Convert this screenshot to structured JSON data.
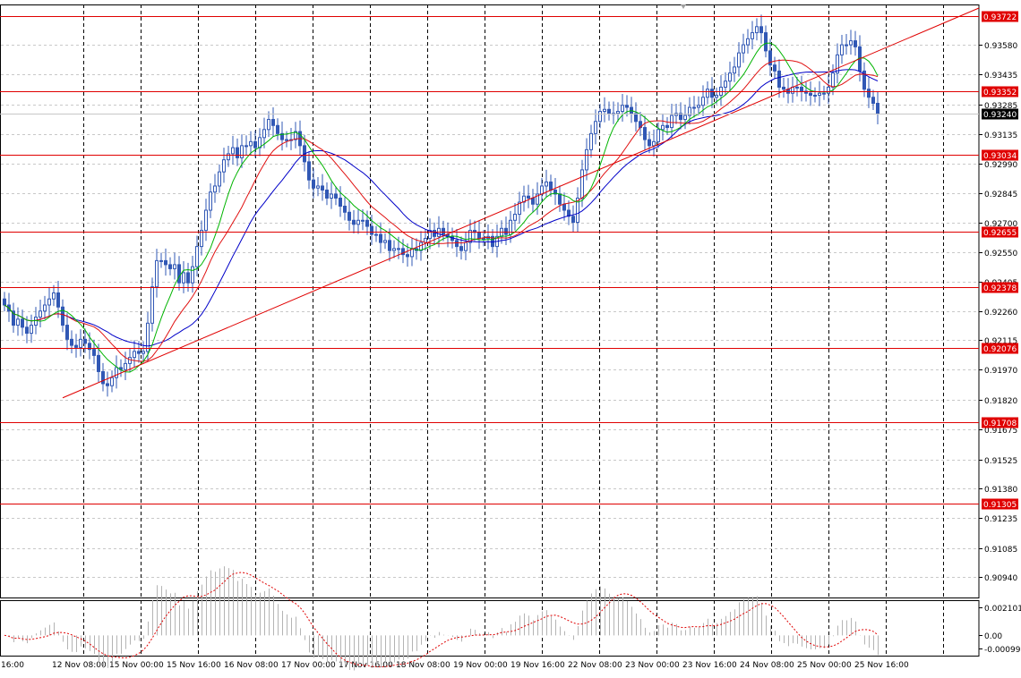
{
  "chart_data": [
    {
      "type": "candlestick",
      "panel": "main",
      "y_range": [
        0.9084,
        0.9378
      ],
      "y_ticks": [
        0.9358,
        0.93435,
        0.93285,
        0.93135,
        0.9299,
        0.92845,
        0.927,
        0.9255,
        0.92405,
        0.9226,
        0.92115,
        0.9197,
        0.9182,
        0.91675,
        0.91525,
        0.9138,
        0.91235,
        0.91085,
        0.9094
      ],
      "x_tick_labels": [
        "16:00",
        "12 Nov 08:00",
        "15 Nov 00:00",
        "15 Nov 16:00",
        "16 Nov 08:00",
        "17 Nov 00:00",
        "17 Nov 16:00",
        "18 Nov 08:00",
        "19 Nov 00:00",
        "19 Nov 16:00",
        "22 Nov 08:00",
        "23 Nov 00:00",
        "23 Nov 16:00",
        "24 Nov 08:00",
        "25 Nov 00:00",
        "25 Nov 16:00"
      ],
      "horizontal_levels": [
        {
          "value": 0.93722,
          "label": "0.93722"
        },
        {
          "value": 0.93352,
          "label": "0.93352"
        },
        {
          "value": 0.93034,
          "label": "0.93034"
        },
        {
          "value": 0.92655,
          "label": "0.92655"
        },
        {
          "value": 0.92378,
          "label": "0.92378"
        },
        {
          "value": 0.92076,
          "label": "0.92076"
        },
        {
          "value": 0.91708,
          "label": "0.91708"
        },
        {
          "value": 0.91305,
          "label": "0.91305"
        }
      ],
      "current_price": {
        "value": 0.9324,
        "label": "0.93240"
      },
      "trendline": {
        "from": {
          "bar": 13,
          "price": 0.9183
        },
        "to": {
          "bar": 193,
          "price": 0.9353
        }
      },
      "closes": [
        0.9229,
        0.9226,
        0.9219,
        0.9222,
        0.9218,
        0.9215,
        0.9219,
        0.9223,
        0.9226,
        0.9229,
        0.9232,
        0.9235,
        0.9228,
        0.9219,
        0.9212,
        0.9209,
        0.9208,
        0.9212,
        0.921,
        0.9207,
        0.9204,
        0.9196,
        0.919,
        0.9189,
        0.9193,
        0.9198,
        0.9197,
        0.92,
        0.9203,
        0.9206,
        0.9205,
        0.9206,
        0.922,
        0.9238,
        0.9251,
        0.9251,
        0.9249,
        0.9247,
        0.9249,
        0.924,
        0.9245,
        0.924,
        0.9248,
        0.9258,
        0.9266,
        0.9276,
        0.9285,
        0.9288,
        0.9295,
        0.9301,
        0.9304,
        0.9307,
        0.9302,
        0.9308,
        0.9308,
        0.931,
        0.9307,
        0.9312,
        0.9316,
        0.9321,
        0.9318,
        0.9314,
        0.9311,
        0.9311,
        0.9311,
        0.9315,
        0.9308,
        0.93,
        0.9291,
        0.9287,
        0.9288,
        0.9286,
        0.9282,
        0.9284,
        0.9282,
        0.9278,
        0.9275,
        0.9271,
        0.9269,
        0.9271,
        0.9271,
        0.9268,
        0.9264,
        0.9264,
        0.926,
        0.9261,
        0.9256,
        0.9257,
        0.9257,
        0.9254,
        0.9253,
        0.9257,
        0.9256,
        0.926,
        0.9262,
        0.9266,
        0.9263,
        0.9267,
        0.9264,
        0.9263,
        0.9261,
        0.9258,
        0.9256,
        0.926,
        0.9266,
        0.9265,
        0.9262,
        0.9262,
        0.9263,
        0.9258,
        0.9263,
        0.9267,
        0.9264,
        0.9271,
        0.9274,
        0.928,
        0.9283,
        0.9282,
        0.9279,
        0.9284,
        0.9288,
        0.929,
        0.9286,
        0.9284,
        0.9279,
        0.9276,
        0.9273,
        0.927,
        0.9282,
        0.9296,
        0.9306,
        0.9314,
        0.932,
        0.9325,
        0.9326,
        0.9324,
        0.9324,
        0.9325,
        0.9328,
        0.9327,
        0.9324,
        0.932,
        0.9317,
        0.9311,
        0.9308,
        0.931,
        0.9316,
        0.9318,
        0.9317,
        0.9323,
        0.9324,
        0.9321,
        0.9323,
        0.9327,
        0.9327,
        0.9328,
        0.9332,
        0.9336,
        0.9332,
        0.9333,
        0.9337,
        0.934,
        0.9344,
        0.9347,
        0.9354,
        0.9358,
        0.9361,
        0.9364,
        0.9367,
        0.9364,
        0.9355,
        0.9348,
        0.9345,
        0.9337,
        0.9336,
        0.9334,
        0.9337,
        0.9337,
        0.9335,
        0.9334,
        0.9333,
        0.9333,
        0.9334,
        0.9334,
        0.9337,
        0.9344,
        0.9353,
        0.9358,
        0.9358,
        0.936,
        0.9357,
        0.9345,
        0.9336,
        0.9332,
        0.9329,
        0.9324
      ]
    },
    {
      "type": "oscillator",
      "panel": "sub",
      "y_ticks": [
        {
          "value": 0.002101,
          "label": "0.002101"
        },
        {
          "value": 0.0,
          "label": "0.00"
        },
        {
          "value": -0.000993,
          "label": "-0.000993"
        }
      ]
    }
  ]
}
